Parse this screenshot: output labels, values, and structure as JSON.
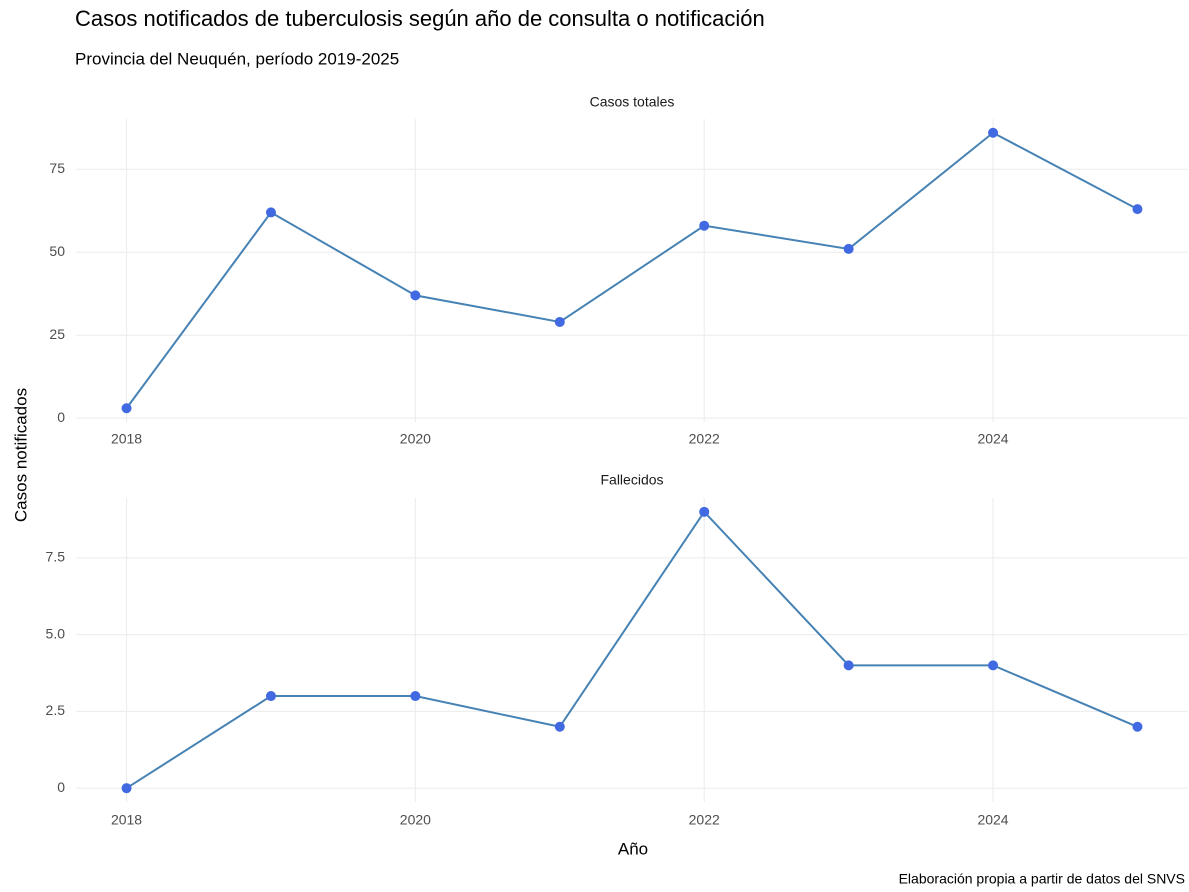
{
  "title": "Casos notificados de tuberculosis según año de consulta o notificación",
  "subtitle": "Provincia del Neuquén, período 2019-2025",
  "ylabel": "Casos notificados",
  "xlabel": "Año",
  "caption": "Elaboración propia a partir de datos del SNVS",
  "chart_data": [
    {
      "type": "line",
      "title": "Casos totales",
      "x": [
        2018,
        2019,
        2020,
        2021,
        2022,
        2023,
        2024,
        2025
      ],
      "values": [
        3,
        62,
        37,
        29,
        58,
        51,
        86,
        63
      ],
      "color": "#4682b4",
      "marker_color": "#4169e1",
      "xlim": [
        2017.65,
        2025.35
      ],
      "xticks": [
        2018,
        2020,
        2022,
        2024
      ],
      "ylim": [
        -1.15,
        90.15
      ],
      "yticks": [
        0,
        25,
        50,
        75
      ],
      "grid": true
    },
    {
      "type": "line",
      "title": "Fallecidos",
      "x": [
        2018,
        2019,
        2020,
        2021,
        2022,
        2023,
        2024,
        2025
      ],
      "values": [
        0,
        3,
        3,
        2,
        9,
        4,
        4,
        2
      ],
      "color": "#4682b4",
      "marker_color": "#4169e1",
      "xlim": [
        2017.65,
        2025.35
      ],
      "xticks": [
        2018,
        2020,
        2022,
        2024
      ],
      "ylim": [
        -0.45,
        9.45
      ],
      "yticks": [
        0,
        {
          "value": 2.5,
          "label": "2.5"
        },
        {
          "value": 5,
          "label": "5.0"
        },
        {
          "value": 7.5,
          "label": "7.5"
        }
      ],
      "grid": true
    }
  ]
}
